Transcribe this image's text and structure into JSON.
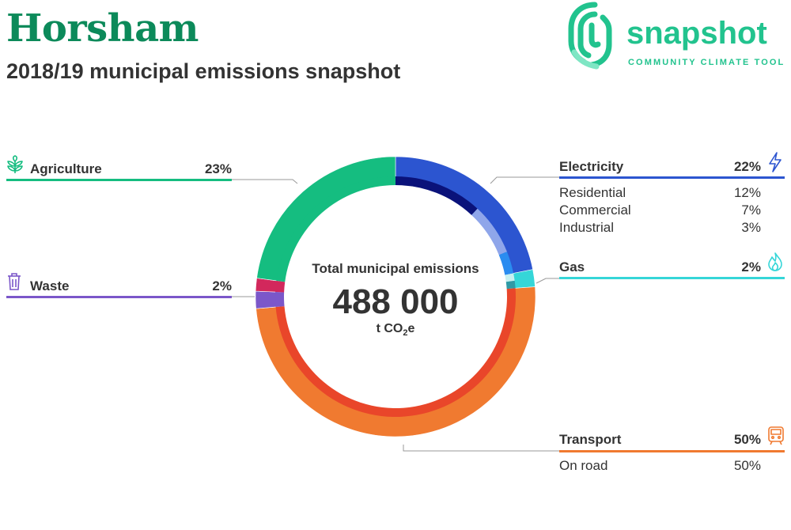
{
  "header": {
    "title": "Horsham",
    "subtitle": "2018/19 municipal emissions snapshot"
  },
  "logo": {
    "word": "snapshot",
    "tagline": "COMMUNITY CLIMATE TOOL",
    "icon": "fingerprint-icon",
    "color": "#22c38e"
  },
  "chart_data": {
    "type": "donut",
    "center": {
      "label": "Total municipal emissions",
      "value": "488 000",
      "unit_prefix": "t CO",
      "unit_sub": "2",
      "unit_suffix": "e"
    },
    "categories": [
      {
        "name": "Electricity",
        "percent": 22,
        "percent_label": "22%",
        "color": "#2c55d0",
        "icon": "lightning-icon",
        "subcategories": [
          {
            "name": "Residential",
            "percent": 12,
            "percent_label": "12%",
            "color": "#0a127a"
          },
          {
            "name": "Commercial",
            "percent": 7,
            "percent_label": "7%",
            "color": "#8fa6ea"
          },
          {
            "name": "Industrial",
            "percent": 3,
            "percent_label": "3%",
            "color": "#2a8cf0"
          }
        ]
      },
      {
        "name": "Gas",
        "percent": 2,
        "percent_label": "2%",
        "color": "#35d6d8",
        "icon": "flame-icon",
        "subcategories": [
          {
            "name": "",
            "percent": 1,
            "color": "#c8f0f0"
          },
          {
            "name": "",
            "percent": 1,
            "color": "#2f9aa6"
          }
        ]
      },
      {
        "name": "Transport",
        "percent": 50,
        "percent_label": "50%",
        "color": "#f07a30",
        "icon": "train-icon",
        "subcategories": [
          {
            "name": "On road",
            "percent": 50,
            "percent_label": "50%",
            "color": "#e9462a"
          }
        ]
      },
      {
        "name": "Waste",
        "percent": 2,
        "percent_label": "2%",
        "color": "#7b57c9",
        "icon": "trash-icon",
        "subcategories": [
          {
            "name": "",
            "percent": 2,
            "color": "#7b57c9"
          }
        ]
      },
      {
        "name": "Agriculture",
        "percent": 23,
        "percent_label": "23%",
        "color": "#15bd80",
        "icon": "leaf-icon",
        "subcategories": [
          {
            "name": "",
            "percent": 23,
            "color": "#15bd80"
          }
        ]
      }
    ],
    "extra_segments": [
      {
        "after": "Waste",
        "percent": 1.5,
        "color": "#d2285c"
      }
    ]
  }
}
